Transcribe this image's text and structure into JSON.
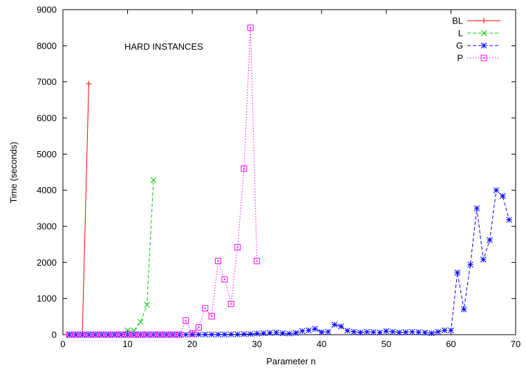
{
  "chart_data": {
    "type": "line",
    "title": "",
    "annotation": "HARD INSTANCES",
    "xlabel": "Parameter n",
    "ylabel": "Time (seconds)",
    "xlim": [
      0,
      70
    ],
    "ylim": [
      0,
      9000
    ],
    "x_ticks": [
      0,
      10,
      20,
      30,
      40,
      50,
      60,
      70
    ],
    "y_ticks": [
      0,
      1000,
      2000,
      3000,
      4000,
      5000,
      6000,
      7000,
      8000,
      9000
    ],
    "grid": false,
    "legend_position": "top-right",
    "series": [
      {
        "name": "BL",
        "color": "#ff0000",
        "marker": "plus",
        "dash": "solid",
        "x": [
          1,
          2,
          3,
          4
        ],
        "y": [
          0,
          0,
          0,
          6950
        ]
      },
      {
        "name": "L",
        "color": "#00cc00",
        "marker": "cross",
        "dash": "dashed",
        "x": [
          1,
          2,
          3,
          4,
          5,
          6,
          7,
          8,
          9,
          10,
          11,
          12,
          13,
          14
        ],
        "y": [
          0,
          0,
          0,
          0,
          0,
          0,
          0,
          0,
          0,
          120,
          110,
          350,
          830,
          4280
        ]
      },
      {
        "name": "G",
        "color": "#0000ff",
        "marker": "star",
        "dash": "dashed",
        "x": [
          1,
          2,
          3,
          4,
          5,
          6,
          7,
          8,
          9,
          10,
          11,
          12,
          13,
          14,
          15,
          16,
          17,
          18,
          19,
          20,
          21,
          22,
          23,
          24,
          25,
          26,
          27,
          28,
          29,
          30,
          31,
          32,
          33,
          34,
          35,
          36,
          37,
          38,
          39,
          40,
          41,
          42,
          43,
          44,
          45,
          46,
          47,
          48,
          49,
          50,
          51,
          52,
          53,
          54,
          55,
          56,
          57,
          58,
          59,
          60,
          61,
          62,
          63,
          64,
          65,
          66,
          67,
          68,
          69
        ],
        "y": [
          0,
          0,
          0,
          0,
          0,
          0,
          0,
          0,
          0,
          0,
          0,
          0,
          0,
          0,
          0,
          0,
          0,
          0,
          0,
          5,
          5,
          5,
          5,
          5,
          5,
          10,
          10,
          15,
          20,
          30,
          40,
          50,
          60,
          40,
          30,
          50,
          100,
          120,
          160,
          70,
          80,
          280,
          230,
          110,
          80,
          60,
          80,
          70,
          60,
          100,
          80,
          60,
          70,
          80,
          70,
          60,
          40,
          80,
          120,
          120,
          1720,
          700,
          1940,
          3500,
          2080,
          2620,
          4000,
          3840,
          3180
        ]
      },
      {
        "name": "P",
        "color": "#ff00ff",
        "marker": "square",
        "dash": "dotted",
        "x": [
          1,
          2,
          3,
          4,
          5,
          6,
          7,
          8,
          9,
          10,
          11,
          12,
          13,
          14,
          15,
          16,
          17,
          18,
          19,
          20,
          21,
          22,
          23,
          24,
          25,
          26,
          27,
          28,
          29,
          30
        ],
        "y": [
          0,
          0,
          0,
          0,
          0,
          0,
          0,
          0,
          0,
          0,
          0,
          0,
          0,
          0,
          0,
          0,
          0,
          0,
          390,
          30,
          200,
          730,
          510,
          2040,
          1530,
          850,
          2420,
          4600,
          8500,
          2040
        ]
      }
    ]
  }
}
